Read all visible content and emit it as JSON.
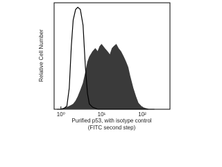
{
  "chart_data": {
    "type": "histogram-overlay",
    "ylabel": "Relative Cell Number",
    "xlabel": [
      "Purified p53, with isotype control",
      "(FITC second step)"
    ],
    "xscale": "log",
    "xlim": [
      0.68,
      480
    ],
    "xticks": [
      {
        "value": 1,
        "label": "10⁰"
      },
      {
        "value": 10,
        "label": "10¹"
      },
      {
        "value": 100,
        "label": "10²"
      }
    ],
    "ylim": [
      0,
      100
    ],
    "x": [
      0.8,
      1,
      1.2,
      1.4,
      1.6,
      1.8,
      2,
      2.3,
      2.6,
      3,
      3.5,
      4,
      4.5,
      5,
      6,
      7,
      8,
      9,
      10,
      12,
      14,
      16,
      18,
      20,
      23,
      26,
      30,
      35,
      40,
      45,
      50,
      60,
      70,
      80,
      100,
      120,
      150,
      200
    ],
    "series": [
      {
        "style": "filled",
        "color": "#3a3a3a",
        "values": [
          0,
          0,
          1,
          2,
          3,
          4,
          5,
          8,
          12,
          18,
          25,
          35,
          45,
          50,
          55,
          58,
          55,
          60,
          62,
          58,
          55,
          52,
          58,
          60,
          62,
          58,
          55,
          50,
          45,
          40,
          32,
          20,
          12,
          6,
          2,
          1,
          0,
          0
        ]
      },
      {
        "style": "outline",
        "color": "#000000",
        "values": [
          0,
          0,
          1,
          3,
          20,
          60,
          85,
          95,
          97,
          95,
          80,
          40,
          15,
          5,
          2,
          1,
          0,
          0,
          0,
          0,
          0,
          0,
          0,
          0,
          0,
          0,
          0,
          0,
          0,
          0,
          0,
          0,
          0,
          0,
          0,
          0,
          0,
          0
        ]
      }
    ]
  }
}
